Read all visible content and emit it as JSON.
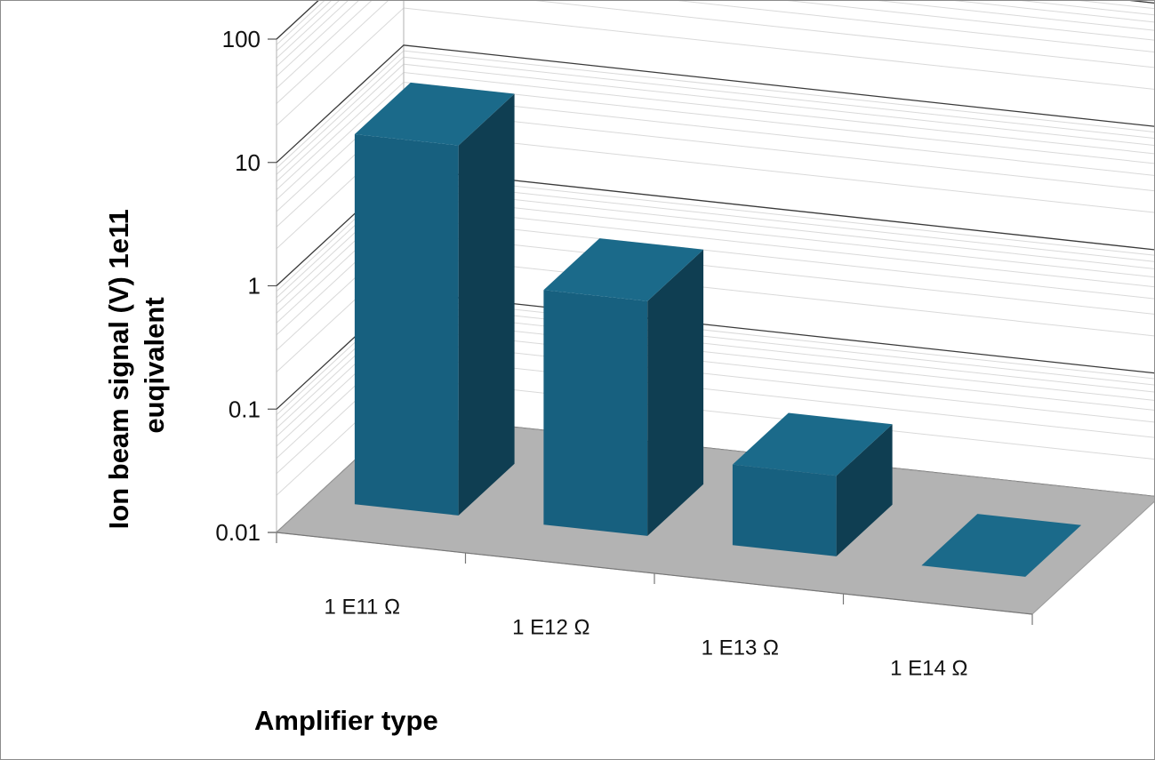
{
  "chart_data": {
    "type": "bar",
    "style": "3d-column",
    "title": "",
    "xlabel": "Amplifier type",
    "ylabel": "Ion beam signal (V) 1e11 euqivalent",
    "ylabel_lines": [
      "Ion beam signal (V) 1e11",
      "euqivalent"
    ],
    "y_scale": "log",
    "ylim": [
      0.01,
      100
    ],
    "y_ticks": [
      "100",
      "10",
      "1",
      "0.1",
      "0.01"
    ],
    "categories": [
      "1 E11 Ω",
      "1 E12 Ω",
      "1 E13 Ω",
      "1 E14 Ω"
    ],
    "values": [
      10,
      0.8,
      0.045,
      0.01
    ],
    "grid": true,
    "colors": {
      "bar_front": "#17607f",
      "bar_side": "#0f3e52",
      "bar_top": "#1b6a8a",
      "floor": "#b3b3b3",
      "gridline": "#3a3a3a",
      "minor_gridline": "#d9d9d9"
    }
  }
}
